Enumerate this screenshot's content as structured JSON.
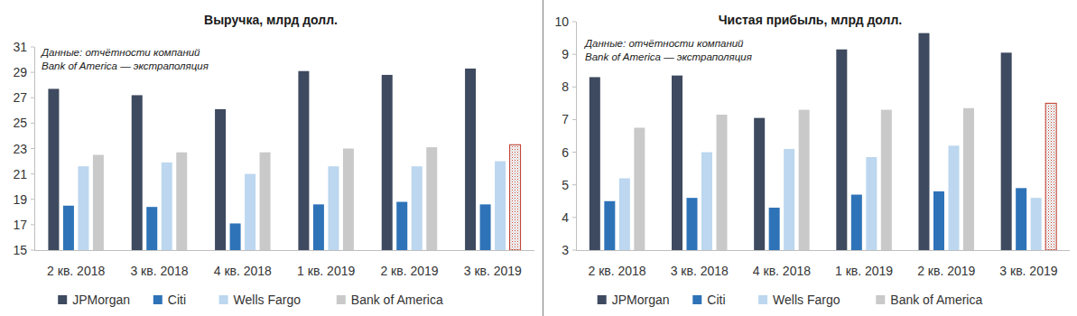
{
  "chart_data": [
    {
      "type": "bar",
      "title": "Выручка, млрд долл.",
      "annotations": [
        "Данные: отчётности компаний",
        "Bank of America — экстраполяция"
      ],
      "categories": [
        "2 кв. 2018",
        "3 кв. 2018",
        "4 кв. 2018",
        "1 кв. 2019",
        "2 кв. 2019",
        "3 кв. 2019"
      ],
      "series": [
        {
          "name": "JPMorgan",
          "color": "#3e4a5f",
          "values": [
            27.7,
            27.2,
            26.1,
            29.1,
            28.8,
            29.3
          ]
        },
        {
          "name": "Citi",
          "color": "#2e73b8",
          "values": [
            18.5,
            18.4,
            17.1,
            18.6,
            18.8,
            18.6
          ]
        },
        {
          "name": "Wells Fargo",
          "color": "#bcd7ef",
          "values": [
            21.6,
            21.9,
            21.0,
            21.6,
            21.6,
            22.0
          ]
        },
        {
          "name": "Bank of America",
          "color": "#c9c9c9",
          "values": [
            22.5,
            22.7,
            22.7,
            23.0,
            23.1,
            23.3
          ]
        }
      ],
      "ylim": [
        15,
        31
      ],
      "yticks": [
        15,
        17,
        19,
        21,
        23,
        25,
        27,
        29,
        31
      ],
      "grid": false,
      "legend": "bottom"
    },
    {
      "type": "bar",
      "title": "Чистая прибыль, млрд долл.",
      "annotations": [
        "Данные: отчётности компаний",
        "Bank of America — экстраполяция"
      ],
      "categories": [
        "2 кв. 2018",
        "3 кв. 2018",
        "4 кв. 2018",
        "1 кв. 2019",
        "2 кв. 2019",
        "3 кв. 2019"
      ],
      "series": [
        {
          "name": "JPMorgan",
          "color": "#3e4a5f",
          "values": [
            8.3,
            8.35,
            7.05,
            9.15,
            9.65,
            9.05
          ]
        },
        {
          "name": "Citi",
          "color": "#2e73b8",
          "values": [
            4.5,
            4.6,
            4.3,
            4.7,
            4.8,
            4.9
          ]
        },
        {
          "name": "Wells Fargo",
          "color": "#bcd7ef",
          "values": [
            5.2,
            6.0,
            6.1,
            5.85,
            6.2,
            4.6
          ]
        },
        {
          "name": "Bank of America",
          "color": "#c9c9c9",
          "values": [
            6.75,
            7.15,
            7.3,
            7.3,
            7.35,
            7.5
          ]
        }
      ],
      "ylim": [
        3,
        10
      ],
      "yticks": [
        3,
        4,
        5,
        6,
        7,
        8,
        9,
        10
      ],
      "grid": false,
      "legend": "bottom"
    }
  ]
}
